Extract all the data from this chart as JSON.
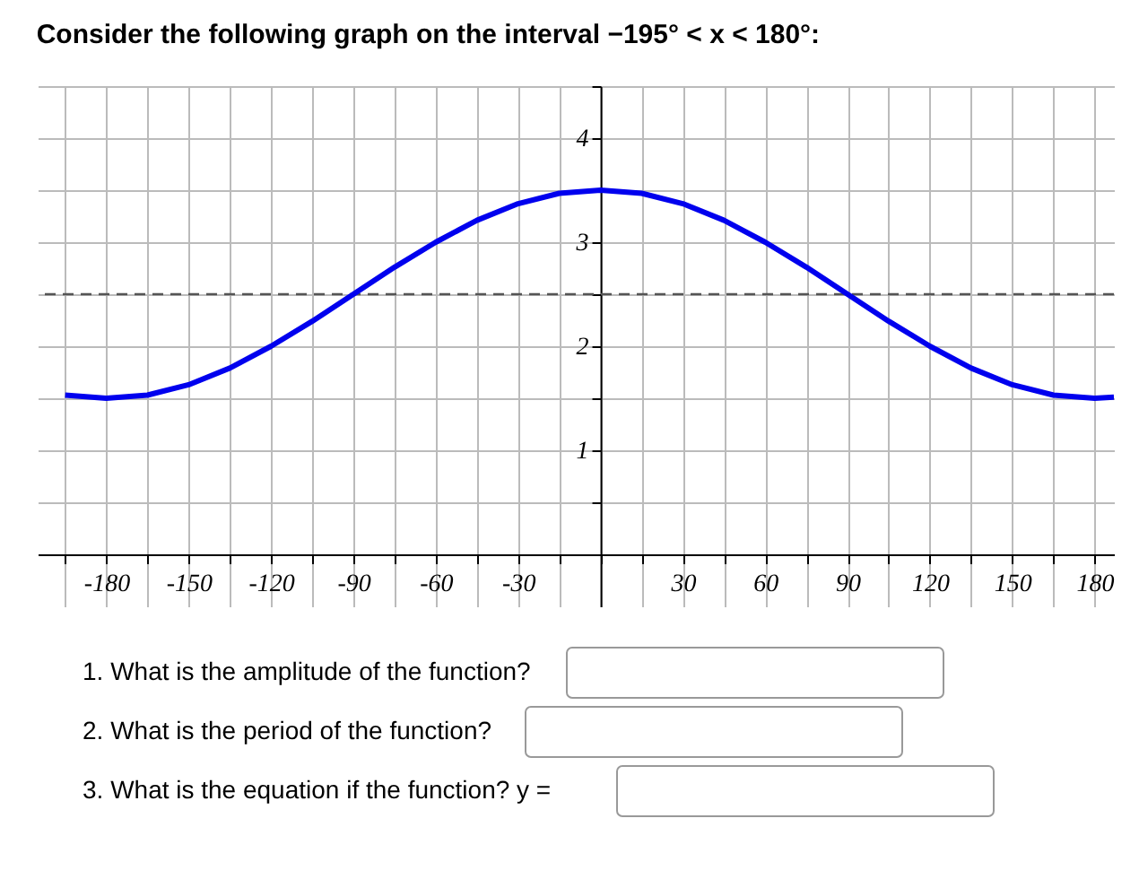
{
  "chart_data": {
    "type": "line",
    "title": "Consider the following graph on the interval −195° < x < 180°:",
    "x": [
      -195,
      -180,
      -165,
      -150,
      -135,
      -120,
      -105,
      -90,
      -75,
      -60,
      -45,
      -30,
      -15,
      0,
      15,
      30,
      45,
      60,
      75,
      90,
      105,
      120,
      135,
      150,
      165,
      180,
      187
    ],
    "series": [
      {
        "color": "#0000ee",
        "values": [
          1.53,
          1.5,
          1.53,
          1.63,
          1.79,
          2.0,
          2.24,
          2.5,
          2.76,
          3.0,
          3.21,
          3.37,
          3.47,
          3.5,
          3.47,
          3.37,
          3.21,
          3.0,
          2.76,
          2.5,
          2.24,
          2.0,
          1.79,
          1.63,
          1.53,
          1.5,
          1.51
        ]
      }
    ],
    "xlim": [
      -205,
      187
    ],
    "ylim": [
      -0.5,
      4.5
    ],
    "xticks": [
      {
        "value": -195,
        "label": null
      },
      -180,
      {
        "value": -165,
        "label": null
      },
      -150,
      {
        "value": -135,
        "label": null
      },
      -120,
      {
        "value": -105,
        "label": null
      },
      -90,
      {
        "value": -75,
        "label": null
      },
      -60,
      {
        "value": -45,
        "label": null
      },
      -30,
      {
        "value": -15,
        "label": null
      },
      {
        "value": 0,
        "label": null
      },
      {
        "value": 15,
        "label": null
      },
      30,
      {
        "value": 45,
        "label": null
      },
      60,
      {
        "value": 75,
        "label": null
      },
      90,
      {
        "value": 105,
        "label": null
      },
      120,
      {
        "value": 135,
        "label": null
      },
      150,
      {
        "value": 165,
        "label": null
      },
      180
    ],
    "yticks": [
      {
        "value": 0,
        "label": null
      },
      {
        "value": 0.5,
        "label": null
      },
      1,
      {
        "value": 1.5,
        "label": null
      },
      2,
      {
        "value": 2.5,
        "label": null
      },
      3,
      {
        "value": 3.5,
        "label": null
      },
      4,
      {
        "value": 4.5,
        "label": null
      }
    ],
    "grid": true,
    "line_style": "solid",
    "marker": "none",
    "ref_lines": [
      {
        "axis": "y",
        "value": 2.5,
        "color": "#555555",
        "line_style": "dashed"
      }
    ],
    "annotations": [
      "1. What is the amplitude of the function?",
      "2. What is the period of the function?",
      "3. What is the equation if the function? y ="
    ]
  }
}
